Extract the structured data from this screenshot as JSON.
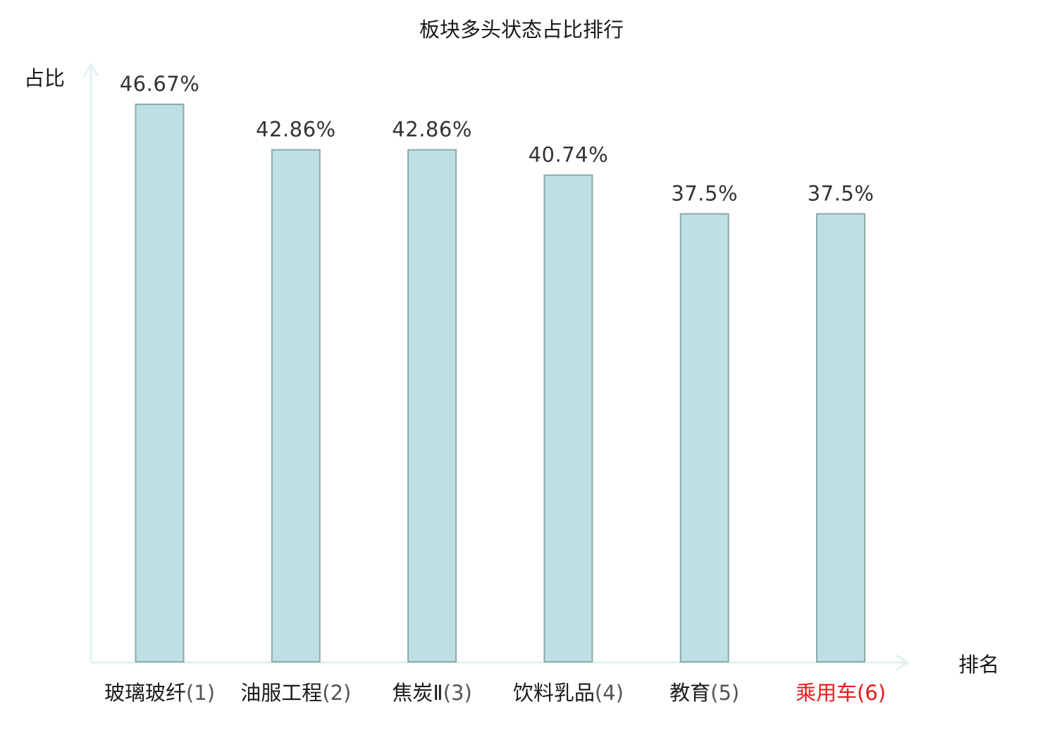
{
  "chart_data": {
    "type": "bar",
    "title": "板块多头状态占比排行",
    "xlabel": "排名",
    "ylabel": "占比",
    "categories": [
      {
        "name": "玻璃玻纤",
        "rank": "(1)"
      },
      {
        "name": "油服工程",
        "rank": "(2)"
      },
      {
        "name": "焦炭Ⅱ",
        "rank": "(3)"
      },
      {
        "name": "饮料乳品",
        "rank": "(4)"
      },
      {
        "name": "教育",
        "rank": "(5)"
      },
      {
        "name": "乘用车",
        "rank": "(6)"
      }
    ],
    "values": [
      46.67,
      42.86,
      42.86,
      40.74,
      37.5,
      37.5
    ],
    "value_labels": [
      "46.67%",
      "42.86%",
      "42.86%",
      "40.74%",
      "37.5%",
      "37.5%"
    ],
    "highlight_index": 5,
    "ylim": [
      0,
      50
    ],
    "grid": false,
    "colors": {
      "bar_fill": "#bce0e3",
      "bar_stroke": "#8aaaa9",
      "axis": "#dff3f1",
      "highlight_text": "#e8191b"
    }
  }
}
